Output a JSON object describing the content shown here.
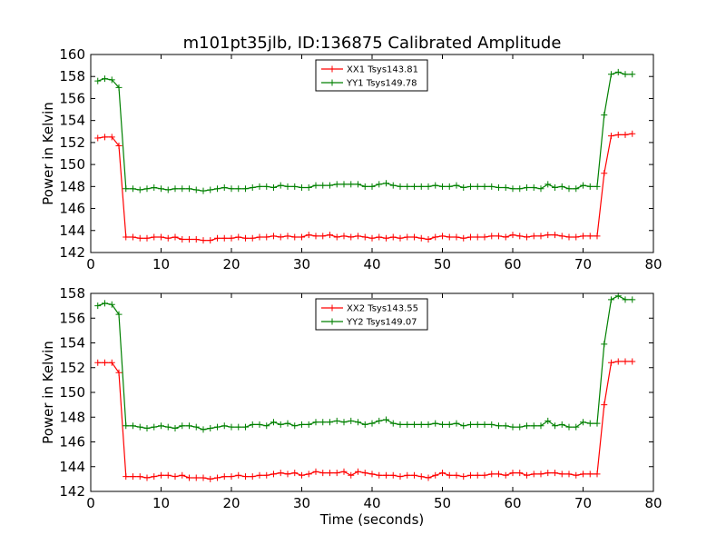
{
  "figure": {
    "title": "m101pt35jlb, ID:136875 Calibrated Amplitude",
    "xlabel": "Time (seconds)"
  },
  "chart_data": [
    {
      "type": "line",
      "ylabel": "Power in Kelvin",
      "xlim": [
        0,
        80
      ],
      "ylim": [
        142,
        160
      ],
      "xticks": [
        0,
        10,
        20,
        30,
        40,
        50,
        60,
        70,
        80
      ],
      "yticks": [
        142,
        144,
        146,
        148,
        150,
        152,
        154,
        156,
        158,
        160
      ],
      "legend": "upper-center",
      "series": [
        {
          "name": "XX1 Tsys143.81",
          "color": "#ff0000",
          "x": [
            1,
            2,
            3,
            4,
            5,
            6,
            7,
            8,
            9,
            10,
            11,
            12,
            13,
            14,
            15,
            16,
            17,
            18,
            19,
            20,
            21,
            22,
            23,
            24,
            25,
            26,
            27,
            28,
            29,
            30,
            31,
            32,
            33,
            34,
            35,
            36,
            37,
            38,
            39,
            40,
            41,
            42,
            43,
            44,
            45,
            46,
            47,
            48,
            49,
            50,
            51,
            52,
            53,
            54,
            55,
            56,
            57,
            58,
            59,
            60,
            61,
            62,
            63,
            64,
            65,
            66,
            67,
            68,
            69,
            70,
            71,
            72,
            73,
            74,
            75,
            76,
            77
          ],
          "y": [
            152.4,
            152.5,
            152.5,
            151.7,
            143.4,
            143.4,
            143.3,
            143.3,
            143.4,
            143.4,
            143.3,
            143.4,
            143.2,
            143.2,
            143.2,
            143.1,
            143.1,
            143.3,
            143.3,
            143.3,
            143.4,
            143.3,
            143.3,
            143.4,
            143.4,
            143.5,
            143.4,
            143.5,
            143.4,
            143.4,
            143.6,
            143.5,
            143.5,
            143.6,
            143.4,
            143.5,
            143.4,
            143.5,
            143.4,
            143.3,
            143.4,
            143.3,
            143.4,
            143.3,
            143.4,
            143.4,
            143.3,
            143.2,
            143.4,
            143.5,
            143.4,
            143.4,
            143.3,
            143.4,
            143.4,
            143.4,
            143.5,
            143.5,
            143.4,
            143.6,
            143.5,
            143.4,
            143.5,
            143.5,
            143.6,
            143.6,
            143.5,
            143.4,
            143.4,
            143.5,
            143.5,
            143.5,
            149.2,
            152.6,
            152.7,
            152.7,
            152.8
          ]
        },
        {
          "name": "YY1 Tsys149.78",
          "color": "#008000",
          "x": [
            1,
            2,
            3,
            4,
            5,
            6,
            7,
            8,
            9,
            10,
            11,
            12,
            13,
            14,
            15,
            16,
            17,
            18,
            19,
            20,
            21,
            22,
            23,
            24,
            25,
            26,
            27,
            28,
            29,
            30,
            31,
            32,
            33,
            34,
            35,
            36,
            37,
            38,
            39,
            40,
            41,
            42,
            43,
            44,
            45,
            46,
            47,
            48,
            49,
            50,
            51,
            52,
            53,
            54,
            55,
            56,
            57,
            58,
            59,
            60,
            61,
            62,
            63,
            64,
            65,
            66,
            67,
            68,
            69,
            70,
            71,
            72,
            73,
            74,
            75,
            76,
            77
          ],
          "y": [
            157.6,
            157.8,
            157.7,
            157.0,
            147.8,
            147.8,
            147.7,
            147.8,
            147.9,
            147.8,
            147.7,
            147.8,
            147.8,
            147.8,
            147.7,
            147.6,
            147.7,
            147.8,
            147.9,
            147.8,
            147.8,
            147.8,
            147.9,
            148.0,
            148.0,
            147.9,
            148.1,
            148.0,
            148.0,
            147.9,
            147.9,
            148.1,
            148.1,
            148.1,
            148.2,
            148.2,
            148.2,
            148.2,
            148.0,
            148.0,
            148.2,
            148.3,
            148.1,
            148.0,
            148.0,
            148.0,
            148.0,
            148.0,
            148.1,
            148.0,
            148.0,
            148.1,
            147.9,
            148.0,
            148.0,
            148.0,
            148.0,
            147.9,
            147.9,
            147.8,
            147.8,
            147.9,
            147.9,
            147.8,
            148.2,
            147.9,
            148.0,
            147.8,
            147.8,
            148.1,
            148.0,
            148.0,
            154.5,
            158.2,
            158.4,
            158.2,
            158.2
          ]
        }
      ]
    },
    {
      "type": "line",
      "ylabel": "Power in Kelvin",
      "xlim": [
        0,
        80
      ],
      "ylim": [
        142,
        158
      ],
      "xticks": [
        0,
        10,
        20,
        30,
        40,
        50,
        60,
        70,
        80
      ],
      "yticks": [
        142,
        144,
        146,
        148,
        150,
        152,
        154,
        156,
        158
      ],
      "legend": "upper-center",
      "series": [
        {
          "name": "XX2 Tsys143.55",
          "color": "#ff0000",
          "x": [
            1,
            2,
            3,
            4,
            5,
            6,
            7,
            8,
            9,
            10,
            11,
            12,
            13,
            14,
            15,
            16,
            17,
            18,
            19,
            20,
            21,
            22,
            23,
            24,
            25,
            26,
            27,
            28,
            29,
            30,
            31,
            32,
            33,
            34,
            35,
            36,
            37,
            38,
            39,
            40,
            41,
            42,
            43,
            44,
            45,
            46,
            47,
            48,
            49,
            50,
            51,
            52,
            53,
            54,
            55,
            56,
            57,
            58,
            59,
            60,
            61,
            62,
            63,
            64,
            65,
            66,
            67,
            68,
            69,
            70,
            71,
            72,
            73,
            74,
            75,
            76,
            77
          ],
          "y": [
            152.4,
            152.4,
            152.4,
            151.6,
            143.2,
            143.2,
            143.2,
            143.1,
            143.2,
            143.3,
            143.3,
            143.2,
            143.3,
            143.1,
            143.1,
            143.1,
            143.0,
            143.1,
            143.2,
            143.2,
            143.3,
            143.2,
            143.2,
            143.3,
            143.3,
            143.4,
            143.5,
            143.4,
            143.5,
            143.3,
            143.4,
            143.6,
            143.5,
            143.5,
            143.5,
            143.6,
            143.3,
            143.6,
            143.5,
            143.4,
            143.3,
            143.3,
            143.3,
            143.2,
            143.3,
            143.3,
            143.2,
            143.1,
            143.3,
            143.5,
            143.3,
            143.3,
            143.2,
            143.3,
            143.3,
            143.3,
            143.4,
            143.4,
            143.3,
            143.5,
            143.5,
            143.3,
            143.4,
            143.4,
            143.5,
            143.5,
            143.4,
            143.4,
            143.3,
            143.4,
            143.4,
            143.4,
            149.0,
            152.4,
            152.5,
            152.5,
            152.5
          ]
        },
        {
          "name": "YY2 Tsys149.07",
          "color": "#008000",
          "x": [
            1,
            2,
            3,
            4,
            5,
            6,
            7,
            8,
            9,
            10,
            11,
            12,
            13,
            14,
            15,
            16,
            17,
            18,
            19,
            20,
            21,
            22,
            23,
            24,
            25,
            26,
            27,
            28,
            29,
            30,
            31,
            32,
            33,
            34,
            35,
            36,
            37,
            38,
            39,
            40,
            41,
            42,
            43,
            44,
            45,
            46,
            47,
            48,
            49,
            50,
            51,
            52,
            53,
            54,
            55,
            56,
            57,
            58,
            59,
            60,
            61,
            62,
            63,
            64,
            65,
            66,
            67,
            68,
            69,
            70,
            71,
            72,
            73,
            74,
            75,
            76,
            77
          ],
          "y": [
            157.0,
            157.2,
            157.1,
            156.3,
            147.3,
            147.3,
            147.2,
            147.1,
            147.2,
            147.3,
            147.2,
            147.1,
            147.3,
            147.3,
            147.2,
            147.0,
            147.1,
            147.2,
            147.3,
            147.2,
            147.2,
            147.2,
            147.4,
            147.4,
            147.3,
            147.6,
            147.4,
            147.5,
            147.3,
            147.4,
            147.4,
            147.6,
            147.6,
            147.6,
            147.7,
            147.6,
            147.7,
            147.6,
            147.4,
            147.5,
            147.7,
            147.8,
            147.5,
            147.4,
            147.4,
            147.4,
            147.4,
            147.4,
            147.5,
            147.4,
            147.4,
            147.5,
            147.3,
            147.4,
            147.4,
            147.4,
            147.4,
            147.3,
            147.3,
            147.2,
            147.2,
            147.3,
            147.3,
            147.3,
            147.7,
            147.3,
            147.4,
            147.2,
            147.2,
            147.6,
            147.5,
            147.5,
            153.9,
            157.5,
            157.8,
            157.5,
            157.5
          ]
        }
      ]
    }
  ]
}
